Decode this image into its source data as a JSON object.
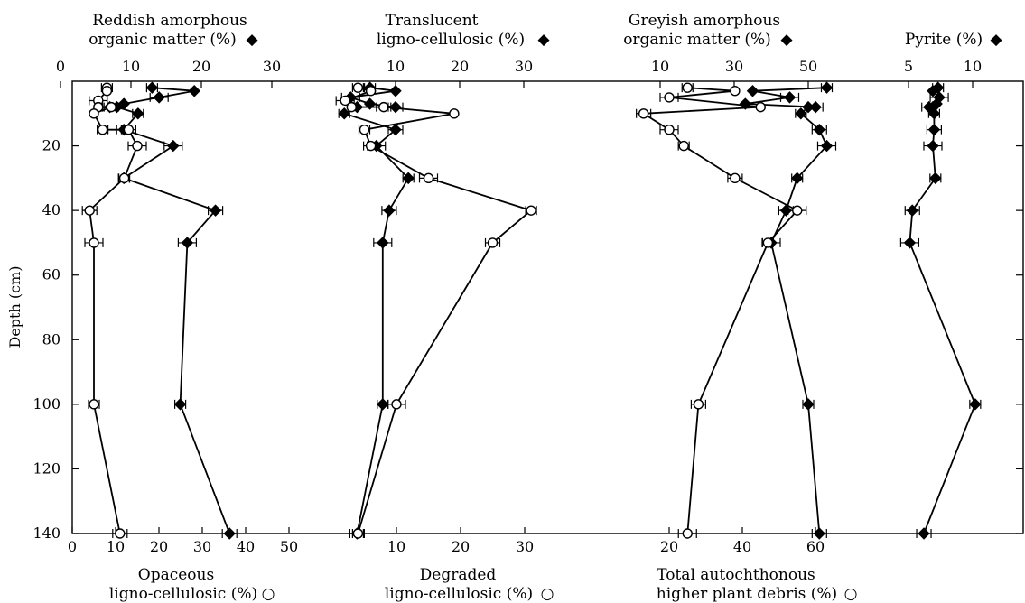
{
  "y_axis": {
    "label": "Depth (cm)",
    "ticks": [
      20,
      40,
      60,
      80,
      100,
      120,
      140
    ],
    "range": [
      0,
      140
    ],
    "inverted": true
  },
  "chart_data": [
    {
      "type": "line",
      "panel": "left",
      "series": [
        {
          "name": "Reddish amorphous organic matter (%)",
          "marker": "filled-diamond",
          "axis": "top",
          "x": [
            13,
            19,
            14,
            9,
            7,
            8,
            11,
            9,
            16,
            9,
            22,
            18,
            17,
            24
          ],
          "y": [
            2,
            3,
            5,
            7,
            8,
            8,
            10,
            15,
            20,
            30,
            40,
            50,
            100,
            140
          ]
        },
        {
          "name": "Opaceous ligno-cellulosic (%)",
          "marker": "open-circle",
          "axis": "bottom",
          "x": [
            8,
            8,
            6,
            6,
            9,
            5,
            7,
            13,
            15,
            12,
            4,
            5,
            5,
            11
          ],
          "y": [
            2,
            3,
            6,
            8,
            8,
            10,
            15,
            15,
            20,
            30,
            40,
            50,
            100,
            140
          ]
        }
      ],
      "top_axis": {
        "label_line1": "Reddish amorphous",
        "label_line2": "organic matter (%)",
        "symbol": "◆",
        "ticks": [
          0,
          10,
          20,
          30
        ]
      },
      "bottom_axis": {
        "label_line1": "Opaceous",
        "label_line2": "ligno-cellulosic (%)",
        "symbol": "○",
        "ticks": [
          0,
          10,
          20,
          30,
          40,
          50
        ]
      }
    },
    {
      "type": "line",
      "panel": "middle",
      "series": [
        {
          "name": "Translucent ligno-cellulosic (%)",
          "marker": "filled-diamond",
          "axis": "top",
          "x": [
            6,
            10,
            3,
            6,
            10,
            4,
            2,
            10,
            7,
            12,
            9,
            8,
            8,
            4
          ],
          "y": [
            2,
            3,
            5,
            7,
            8,
            8,
            10,
            15,
            20,
            30,
            40,
            50,
            100,
            140
          ]
        },
        {
          "name": "Degraded ligno-cellulosic (%)",
          "marker": "open-circle",
          "axis": "bottom",
          "x": [
            4,
            6,
            2,
            3,
            8,
            19,
            5,
            6,
            15,
            31,
            25,
            10,
            4
          ],
          "y": [
            2,
            3,
            6,
            8,
            8,
            10,
            15,
            20,
            30,
            40,
            50,
            100,
            140
          ]
        }
      ],
      "top_axis": {
        "label_line1": "Translucent",
        "label_line2": "ligno-cellulosic (%)",
        "symbol": "◆",
        "ticks": [
          10,
          20,
          30
        ]
      },
      "bottom_axis": {
        "label_line1": "Degraded",
        "label_line2": "ligno-cellulosic (%)",
        "symbol": "○",
        "ticks": [
          10,
          20,
          30
        ]
      }
    },
    {
      "type": "line",
      "panel": "right",
      "series": [
        {
          "name": "Greyish amorphous organic matter (%)",
          "marker": "filled-diamond",
          "axis": "top",
          "x": [
            55,
            35,
            45,
            33,
            52,
            50,
            48,
            53,
            55,
            47,
            44,
            40,
            50,
            53
          ],
          "y": [
            2,
            3,
            5,
            7,
            8,
            8,
            10,
            15,
            20,
            30,
            40,
            50,
            100,
            140
          ]
        },
        {
          "name": "Total autochthonous higher plant debris (%)",
          "marker": "open-circle",
          "axis": "bottom",
          "x": [
            25,
            38,
            20,
            45,
            13,
            20,
            24,
            38,
            55,
            47,
            28,
            25
          ],
          "y": [
            2,
            3,
            5,
            8,
            10,
            15,
            20,
            30,
            40,
            50,
            100,
            140
          ]
        },
        {
          "name": "Pyrite (%)",
          "marker": "filled-diamond",
          "axis": "pyrite-top",
          "x": [
            7.3,
            6.9,
            7.4,
            7.2,
            6.6,
            6.9,
            7.0,
            7.0,
            6.9,
            7.1,
            5.3,
            5.1,
            10.2,
            6.2
          ],
          "y": [
            2,
            3,
            5,
            7,
            8,
            8,
            10,
            15,
            20,
            30,
            40,
            50,
            100,
            140
          ]
        }
      ],
      "top_axis": {
        "label_line1": "Greyish amorphous",
        "label_line2": "organic matter (%)",
        "symbol": "◆",
        "ticks": [
          10,
          30,
          50
        ]
      },
      "pyrite_axis": {
        "label_line1": "Pyrite (%)",
        "symbol": "◆",
        "ticks": [
          5,
          10
        ]
      },
      "bottom_axis": {
        "label_line1": "Total autochthonous",
        "label_line2": "higher plant debris (%)",
        "symbol": "○",
        "ticks": [
          20,
          40,
          60
        ]
      }
    }
  ]
}
